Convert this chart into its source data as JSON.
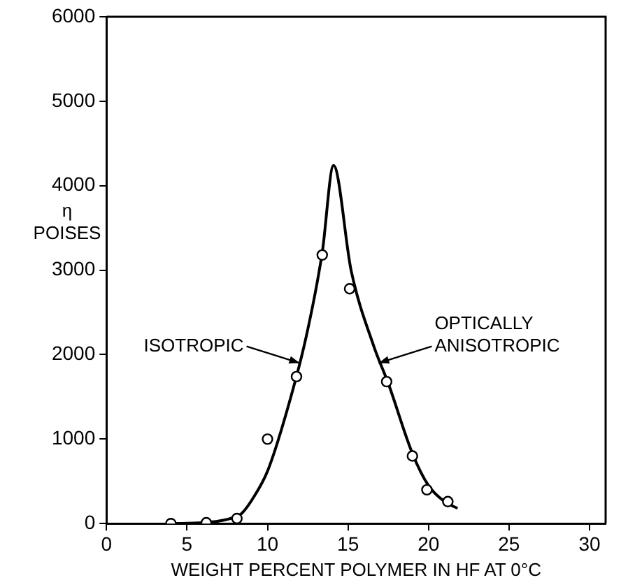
{
  "chart_data": {
    "type": "scatter",
    "xlabel": "WEIGHT PERCENT POLYMER IN HF AT 0°C",
    "ylabel": "η POISES",
    "xlim": [
      0,
      31
    ],
    "xticks": [
      0,
      5,
      10,
      15,
      20,
      25,
      30
    ],
    "ylim": [
      0,
      6000
    ],
    "yticks": [
      0,
      1000,
      2000,
      3000,
      4000,
      5000,
      6000
    ],
    "grid": false,
    "legend": false,
    "series": [
      {
        "marker": "circle",
        "color": "#000000",
        "x": [
          4.0,
          6.2,
          8.1,
          10.0,
          11.8,
          13.4,
          15.1,
          17.4,
          19.0,
          19.9,
          21.2
        ],
        "values": [
          0,
          10,
          60,
          1000,
          1740,
          3180,
          2780,
          1680,
          800,
          400,
          260
        ]
      },
      {
        "type": "line",
        "marker": "none",
        "line_style": "solid",
        "color": "#000000",
        "x": [
          4.0,
          6.0,
          7.0,
          8.0,
          8.4,
          9.2,
          10.0,
          11.2,
          12.4,
          13.4,
          14.1,
          15.2,
          16.6,
          17.5,
          19.0,
          20.0,
          21.0,
          21.8
        ],
        "values": [
          0,
          10,
          30,
          80,
          120,
          330,
          620,
          1330,
          2210,
          3210,
          4240,
          2990,
          2100,
          1660,
          830,
          450,
          260,
          180
        ]
      }
    ],
    "annotations": [
      {
        "text": "ISOTROPIC",
        "x": 12.0,
        "y": 1900
      },
      {
        "text": "OPTICALLY ANISOTROPIC",
        "x": 16.9,
        "y": 1900
      }
    ]
  }
}
